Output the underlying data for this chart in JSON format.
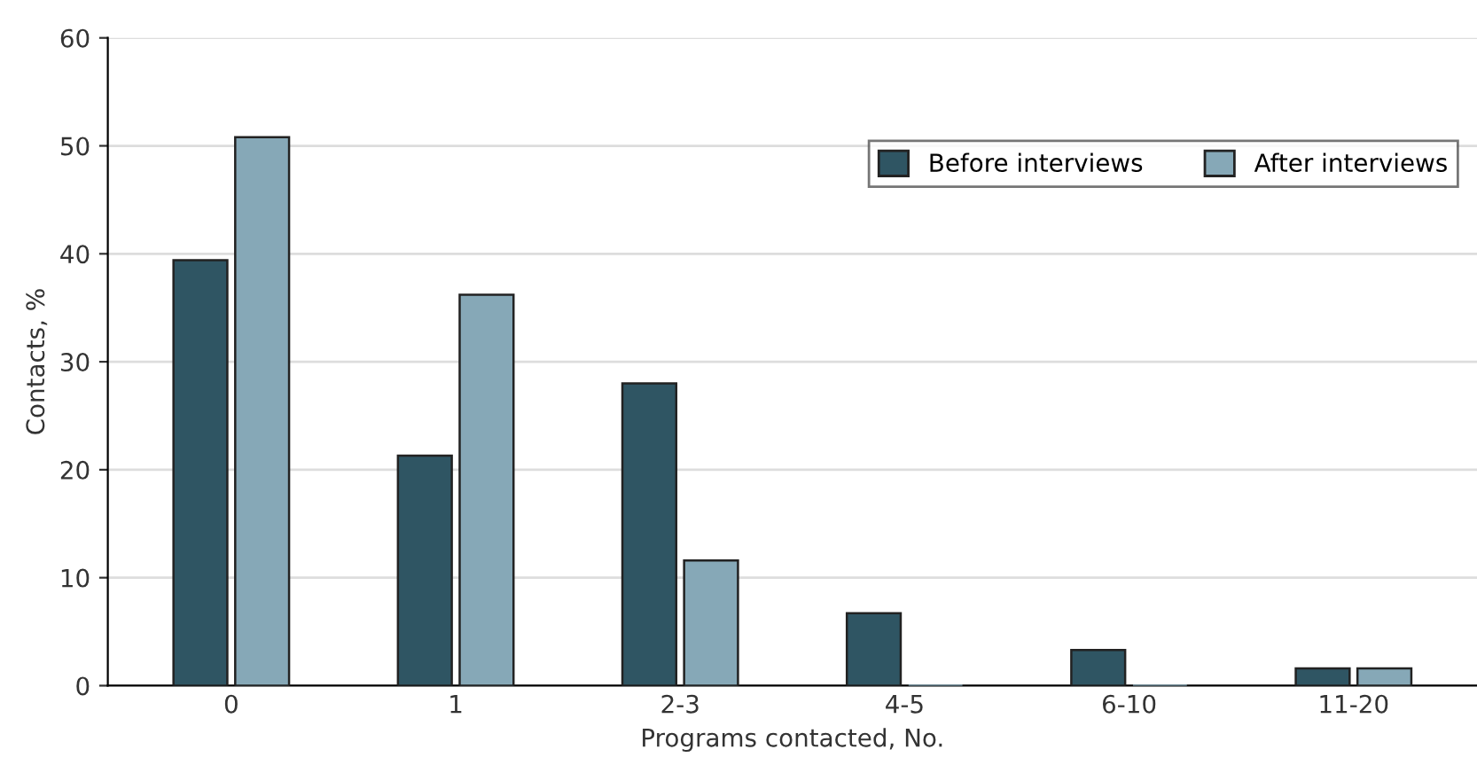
{
  "chart_data": {
    "type": "bar",
    "xlabel": "Programs contacted, No.",
    "ylabel": "Contacts, %",
    "categories": [
      "0",
      "1",
      "2-3",
      "4-5",
      "6-10",
      "11-20"
    ],
    "series": [
      {
        "name": "Before interviews",
        "color": "#2f5563",
        "values": [
          39.4,
          21.3,
          28.0,
          6.7,
          3.3,
          1.6
        ]
      },
      {
        "name": "After interviews",
        "color": "#86a8b7",
        "values": [
          50.8,
          36.2,
          11.6,
          0,
          0,
          1.6
        ]
      }
    ],
    "ylim": [
      0,
      60
    ],
    "yticks": [
      0,
      10,
      20,
      30,
      40,
      50,
      60
    ],
    "grid": "y",
    "legend": "top right"
  }
}
